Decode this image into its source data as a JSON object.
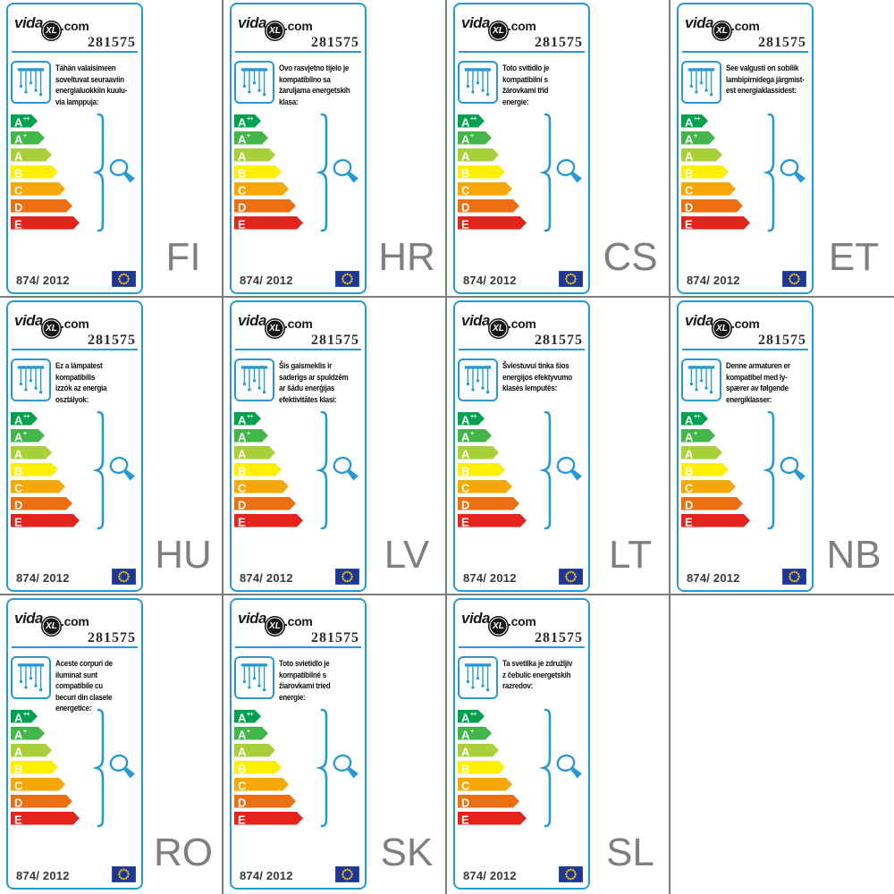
{
  "page": {
    "background": "#ffffff",
    "grid_line_color": "#7d7d7d",
    "accent_color": "#2799d4",
    "language_code_color": "#7f7f7f"
  },
  "shared": {
    "logo": {
      "brand_prefix": "vida",
      "brand_mid": "XL",
      "brand_suffix": ".com"
    },
    "product_number": "281575",
    "regulation": "874/ 2012"
  },
  "energy_scale": {
    "classes": [
      {
        "grade": "A",
        "sup": "++",
        "color": "#00a14e",
        "width": 30
      },
      {
        "grade": "A",
        "sup": "+",
        "color": "#43b649",
        "width": 38
      },
      {
        "grade": "A",
        "sup": "",
        "color": "#a9d039",
        "width": 46
      },
      {
        "grade": "B",
        "sup": "",
        "color": "#fff000",
        "width": 53
      },
      {
        "grade": "C",
        "sup": "",
        "color": "#f5a807",
        "width": 61
      },
      {
        "grade": "D",
        "sup": "",
        "color": "#ec7012",
        "width": 69
      },
      {
        "grade": "E",
        "sup": "",
        "color": "#e5231d",
        "width": 77
      }
    ]
  },
  "labels": [
    {
      "language_code": "FI",
      "description": "Tähän valaisimeen\nsoveltuvat seuraaviin\nenergialuokkiin kuulu-\nvia lamppuja:"
    },
    {
      "language_code": "HR",
      "description": "Ovo rasvjetno tijelo je\nkompatibilno sa\nžaruljama energetskih\nklasa:"
    },
    {
      "language_code": "CS",
      "description": "Toto svítidlo je\nkompatibilní s\nžárovkami tříd\nenergie:"
    },
    {
      "language_code": "ET",
      "description": "See valgusti on sobilik\nlambipirnidega järgmist-\nest energiaklassidest:"
    },
    {
      "language_code": "HU",
      "description": "Ez a lámpatest\nkompatibilis\nizzók az energia\nosztályok:"
    },
    {
      "language_code": "LV",
      "description": "Šis gaismeklis ir\nsaderīgs ar spuldzēm\nar šādu enerģijas\nefektivitātes klasi:"
    },
    {
      "language_code": "LT",
      "description": "Šviestuvui tinka šios\nenergijos efektyvumo\nklasės lemputės:"
    },
    {
      "language_code": "NB",
      "description": "Denne armaturen er\nkompatibel med ly-\nspærer av følgende\nenergiklasser:"
    },
    {
      "language_code": "RO",
      "description": "Aceste corpuri de\niluminat sunt\ncompatibile cu\nbecuri din clasele\nenergetice:"
    },
    {
      "language_code": "SK",
      "description": "Toto svietidlo je\nkompatibilné s\nžiarovkami tried\nenergie:"
    },
    {
      "language_code": "SL",
      "description": "Ta svetilka je združljiv\nz čebulic energetskih\nrazredov:"
    }
  ]
}
